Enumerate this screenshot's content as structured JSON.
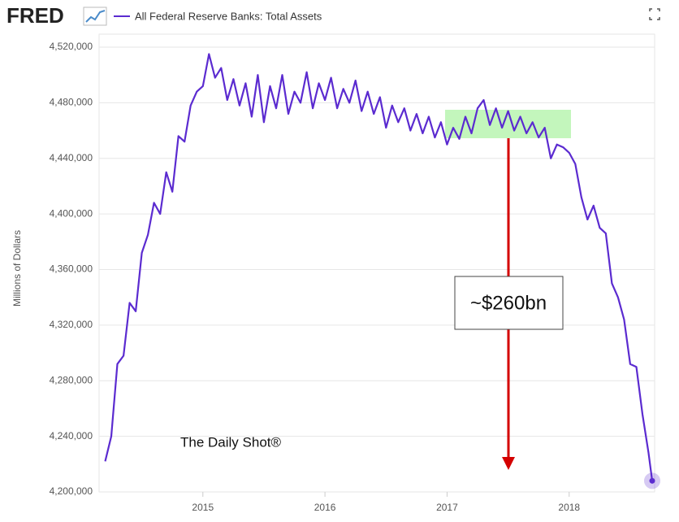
{
  "brand": "FRED",
  "chart_data": {
    "type": "line",
    "y_label": "Millions of Dollars",
    "annotations": [
      "~$260bn",
      "The Daily Shot®"
    ],
    "x": [
      2014.2,
      2014.25,
      2014.3,
      2014.35,
      2014.4,
      2014.45,
      2014.5,
      2014.55,
      2014.6,
      2014.65,
      2014.7,
      2014.75,
      2014.8,
      2014.85,
      2014.9,
      2014.95,
      2015.0,
      2015.05,
      2015.1,
      2015.15,
      2015.2,
      2015.25,
      2015.3,
      2015.35,
      2015.4,
      2015.45,
      2015.5,
      2015.55,
      2015.6,
      2015.65,
      2015.7,
      2015.75,
      2015.8,
      2015.85,
      2015.9,
      2015.95,
      2016.0,
      2016.05,
      2016.1,
      2016.15,
      2016.2,
      2016.25,
      2016.3,
      2016.35,
      2016.4,
      2016.45,
      2016.5,
      2016.55,
      2016.6,
      2016.65,
      2016.7,
      2016.75,
      2016.8,
      2016.85,
      2016.9,
      2016.95,
      2017.0,
      2017.05,
      2017.1,
      2017.15,
      2017.2,
      2017.25,
      2017.3,
      2017.35,
      2017.4,
      2017.45,
      2017.5,
      2017.55,
      2017.6,
      2017.65,
      2017.7,
      2017.75,
      2017.8,
      2017.85,
      2017.9,
      2017.95,
      2018.0,
      2018.05,
      2018.1,
      2018.15,
      2018.2,
      2018.25,
      2018.3,
      2018.35,
      2018.4,
      2018.45,
      2018.5,
      2018.55,
      2018.6,
      2018.65,
      2018.68
    ],
    "series": [
      {
        "name": "All Federal Reserve Banks: Total Assets",
        "color": "#5b2bd0",
        "values": [
          4222000,
          4240000,
          4292000,
          4298000,
          4336000,
          4330000,
          4372000,
          4385000,
          4408000,
          4400000,
          4430000,
          4416000,
          4456000,
          4452000,
          4478000,
          4488000,
          4492000,
          4515000,
          4498000,
          4505000,
          4482000,
          4497000,
          4478000,
          4494000,
          4470000,
          4500000,
          4466000,
          4492000,
          4476000,
          4500000,
          4472000,
          4488000,
          4480000,
          4502000,
          4476000,
          4494000,
          4482000,
          4498000,
          4476000,
          4490000,
          4480000,
          4496000,
          4474000,
          4488000,
          4472000,
          4484000,
          4462000,
          4478000,
          4466000,
          4476000,
          4460000,
          4472000,
          4458000,
          4470000,
          4455000,
          4466000,
          4450000,
          4462000,
          4454000,
          4470000,
          4458000,
          4476000,
          4482000,
          4464000,
          4476000,
          4462000,
          4474000,
          4460000,
          4470000,
          4458000,
          4466000,
          4455000,
          4462000,
          4440000,
          4450000,
          4448000,
          4444000,
          4436000,
          4412000,
          4396000,
          4406000,
          4390000,
          4386000,
          4350000,
          4340000,
          4324000,
          4292000,
          4290000,
          4256000,
          4228000,
          4208000
        ]
      }
    ],
    "xlim": [
      2014.15,
      2018.7
    ],
    "xticks": [
      2015,
      2016,
      2017,
      2018
    ],
    "ylim": [
      4200000,
      4520000
    ],
    "yticks": [
      {
        "value": 4200000,
        "label": "4,200,000"
      },
      {
        "value": 4240000,
        "label": "4,240,000"
      },
      {
        "value": 4280000,
        "label": "4,280,000"
      },
      {
        "value": 4320000,
        "label": "4,320,000"
      },
      {
        "value": 4360000,
        "label": "4,360,000"
      },
      {
        "value": 4400000,
        "label": "4,400,000"
      },
      {
        "value": 4440000,
        "label": "4,440,000"
      },
      {
        "value": 4480000,
        "label": "4,480,000"
      },
      {
        "value": 4520000,
        "label": "4,520,000"
      }
    ],
    "grid": true
  }
}
